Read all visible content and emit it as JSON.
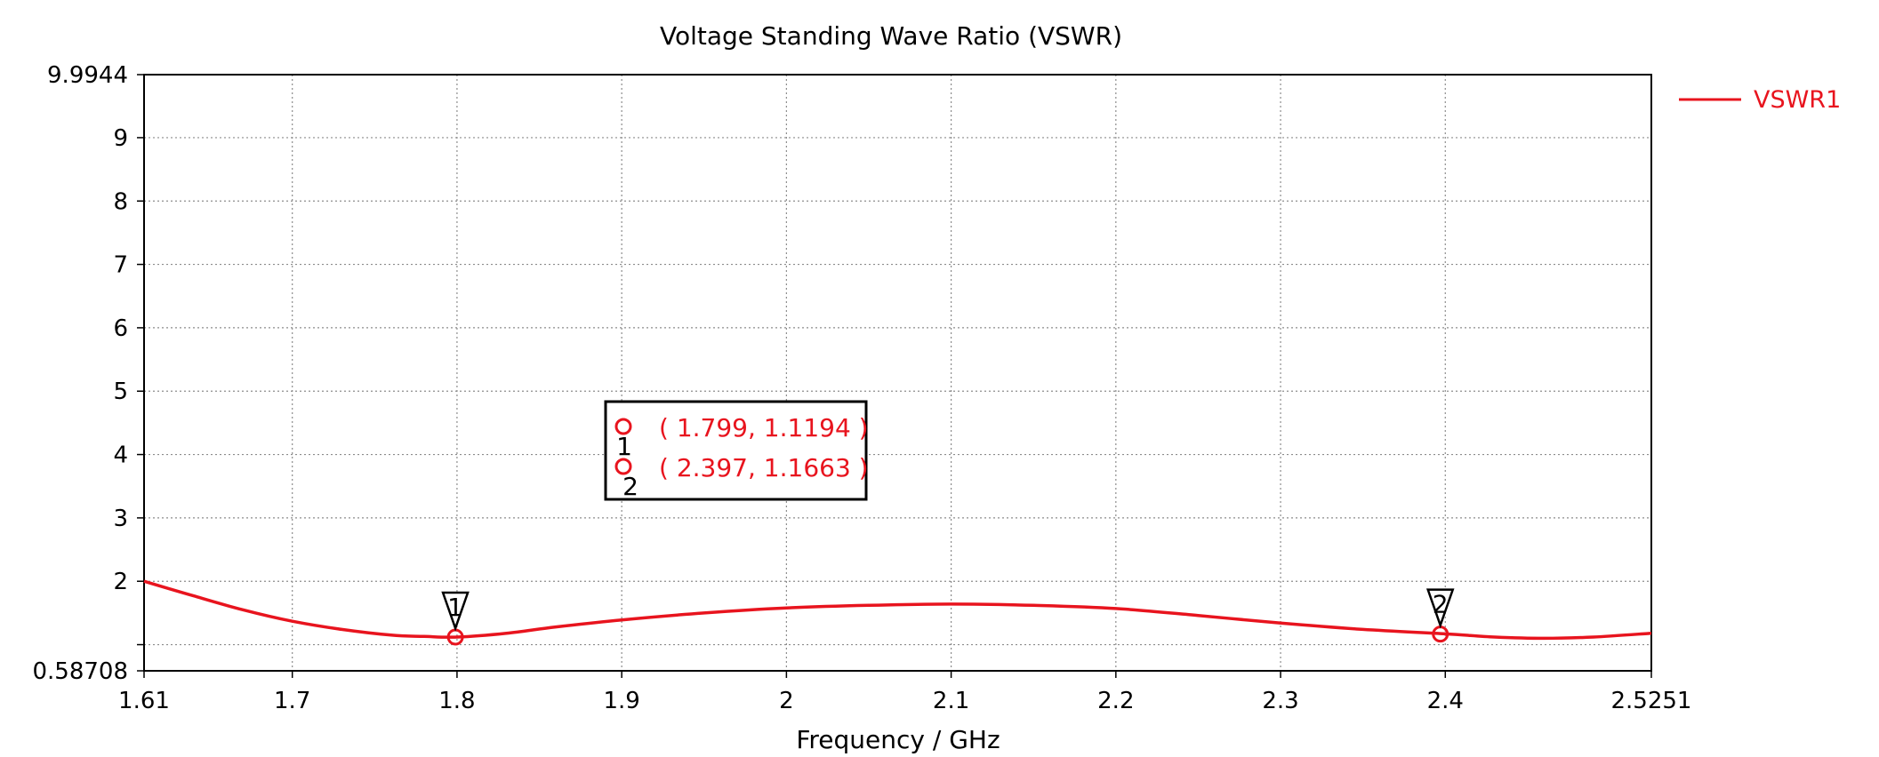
{
  "chart_data": {
    "type": "line",
    "title": "Voltage Standing Wave Ratio (VSWR)",
    "xlabel": "Frequency / GHz",
    "ylabel": "",
    "xlim": [
      1.61,
      2.5251
    ],
    "ylim": [
      0.58708,
      9.9944
    ],
    "x_ticks": [
      {
        "value": 1.61,
        "label": "1.61"
      },
      {
        "value": 1.7,
        "label": "1.7"
      },
      {
        "value": 1.8,
        "label": "1.8"
      },
      {
        "value": 1.9,
        "label": "1.9"
      },
      {
        "value": 2.0,
        "label": "2"
      },
      {
        "value": 2.1,
        "label": "2.1"
      },
      {
        "value": 2.2,
        "label": "2.2"
      },
      {
        "value": 2.3,
        "label": "2.3"
      },
      {
        "value": 2.4,
        "label": "2.4"
      },
      {
        "value": 2.5251,
        "label": "2.5251"
      }
    ],
    "y_ticks": [
      {
        "value": 0.58708,
        "label": "0.58708"
      },
      {
        "value": 2,
        "label": "2"
      },
      {
        "value": 3,
        "label": "3"
      },
      {
        "value": 4,
        "label": "4"
      },
      {
        "value": 5,
        "label": "5"
      },
      {
        "value": 6,
        "label": "6"
      },
      {
        "value": 7,
        "label": "7"
      },
      {
        "value": 8,
        "label": "8"
      },
      {
        "value": 9,
        "label": "9"
      },
      {
        "value": 9.9944,
        "label": "9.9944"
      }
    ],
    "y_minor_grid": [
      1.0
    ],
    "grid": true,
    "legend_position": "right-top",
    "series": [
      {
        "name": "VSWR1",
        "color": "#e8141e",
        "x": [
          1.61,
          1.64,
          1.67,
          1.7,
          1.73,
          1.76,
          1.78,
          1.8,
          1.83,
          1.86,
          1.9,
          1.95,
          2.0,
          2.05,
          2.1,
          2.15,
          2.2,
          2.25,
          2.3,
          2.35,
          2.4,
          2.43,
          2.46,
          2.49,
          2.5251
        ],
        "y": [
          2.0,
          1.77,
          1.55,
          1.37,
          1.24,
          1.15,
          1.13,
          1.12,
          1.18,
          1.28,
          1.39,
          1.5,
          1.58,
          1.62,
          1.64,
          1.62,
          1.57,
          1.46,
          1.34,
          1.24,
          1.17,
          1.12,
          1.1,
          1.12,
          1.18
        ]
      }
    ],
    "markers": [
      {
        "id": "1",
        "x": 1.799,
        "y": 1.1194,
        "label": "( 1.799, 1.1194 )"
      },
      {
        "id": "2",
        "x": 2.397,
        "y": 1.1663,
        "label": "( 2.397, 1.1663 )"
      }
    ]
  }
}
